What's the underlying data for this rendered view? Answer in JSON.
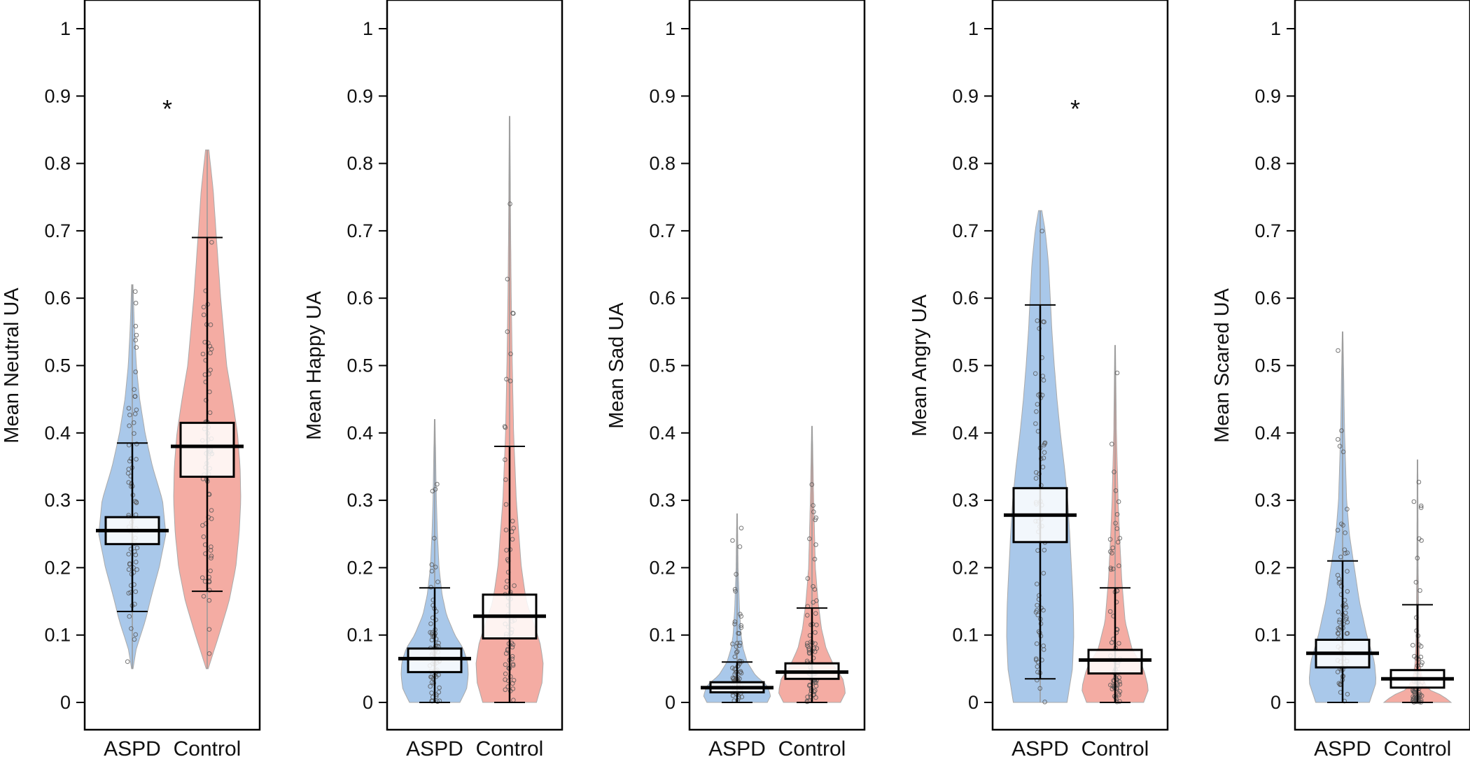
{
  "palette": {
    "ASPD": "#a9c8ea",
    "Control": "#f4aca3",
    "box_fill": "#ffffff",
    "points": "#555555"
  },
  "chart_data": [
    {
      "type": "violin-box",
      "ylabel": "Mean Neutral UA",
      "ylim": [
        0,
        1
      ],
      "yticks": [
        "0",
        "0.1",
        "0.2",
        "0.3",
        "0.4",
        "0.5",
        "0.6",
        "0.7",
        "0.8",
        "0.9",
        "1"
      ],
      "categories": [
        "ASPD",
        "Control"
      ],
      "significance": "*",
      "groups": [
        {
          "name": "ASPD",
          "min": 0.05,
          "max": 0.62,
          "whisker_low": 0.135,
          "whisker_high": 0.385,
          "q1": 0.235,
          "median": 0.255,
          "q3": 0.275,
          "density": [
            [
              0.05,
              0.02
            ],
            [
              0.08,
              0.12
            ],
            [
              0.12,
              0.38
            ],
            [
              0.16,
              0.58
            ],
            [
              0.2,
              0.8
            ],
            [
              0.25,
              1.0
            ],
            [
              0.3,
              0.9
            ],
            [
              0.35,
              0.6
            ],
            [
              0.4,
              0.38
            ],
            [
              0.45,
              0.22
            ],
            [
              0.5,
              0.12
            ],
            [
              0.56,
              0.06
            ],
            [
              0.62,
              0.02
            ]
          ]
        },
        {
          "name": "Control",
          "min": 0.05,
          "max": 0.82,
          "whisker_low": 0.165,
          "whisker_high": 0.69,
          "q1": 0.335,
          "median": 0.38,
          "q3": 0.415,
          "density": [
            [
              0.05,
              0.03
            ],
            [
              0.1,
              0.35
            ],
            [
              0.15,
              0.65
            ],
            [
              0.2,
              0.85
            ],
            [
              0.25,
              0.95
            ],
            [
              0.3,
              1.0
            ],
            [
              0.35,
              0.98
            ],
            [
              0.4,
              0.9
            ],
            [
              0.45,
              0.75
            ],
            [
              0.5,
              0.58
            ],
            [
              0.6,
              0.4
            ],
            [
              0.7,
              0.26
            ],
            [
              0.76,
              0.18
            ],
            [
              0.82,
              0.05
            ]
          ]
        }
      ]
    },
    {
      "type": "violin-box",
      "ylabel": "Mean Happy UA",
      "ylim": [
        0,
        1
      ],
      "yticks": [
        "0",
        "0.1",
        "0.2",
        "0.3",
        "0.4",
        "0.5",
        "0.6",
        "0.7",
        "0.8",
        "0.9",
        "1"
      ],
      "categories": [
        "ASPD",
        "Control"
      ],
      "significance": "",
      "groups": [
        {
          "name": "ASPD",
          "min": 0.0,
          "max": 0.42,
          "whisker_low": 0.0,
          "whisker_high": 0.17,
          "q1": 0.045,
          "median": 0.065,
          "q3": 0.08,
          "density": [
            [
              0.0,
              0.75
            ],
            [
              0.02,
              0.95
            ],
            [
              0.04,
              1.0
            ],
            [
              0.06,
              0.98
            ],
            [
              0.08,
              0.85
            ],
            [
              0.1,
              0.6
            ],
            [
              0.13,
              0.35
            ],
            [
              0.16,
              0.22
            ],
            [
              0.2,
              0.13
            ],
            [
              0.25,
              0.08
            ],
            [
              0.3,
              0.05
            ],
            [
              0.36,
              0.03
            ],
            [
              0.42,
              0.01
            ]
          ]
        },
        {
          "name": "Control",
          "min": 0.0,
          "max": 0.87,
          "whisker_low": 0.0,
          "whisker_high": 0.38,
          "q1": 0.095,
          "median": 0.128,
          "q3": 0.16,
          "density": [
            [
              0.0,
              0.8
            ],
            [
              0.03,
              0.97
            ],
            [
              0.06,
              1.0
            ],
            [
              0.09,
              0.9
            ],
            [
              0.12,
              0.7
            ],
            [
              0.15,
              0.5
            ],
            [
              0.2,
              0.35
            ],
            [
              0.3,
              0.2
            ],
            [
              0.4,
              0.12
            ],
            [
              0.5,
              0.08
            ],
            [
              0.6,
              0.05
            ],
            [
              0.7,
              0.03
            ],
            [
              0.87,
              0.01
            ]
          ]
        }
      ]
    },
    {
      "type": "violin-box",
      "ylabel": "Mean Sad UA",
      "ylim": [
        0,
        1
      ],
      "yticks": [
        "0",
        "0.1",
        "0.2",
        "0.3",
        "0.4",
        "0.5",
        "0.6",
        "0.7",
        "0.8",
        "0.9",
        "1"
      ],
      "categories": [
        "ASPD",
        "Control"
      ],
      "significance": "",
      "groups": [
        {
          "name": "ASPD",
          "min": 0.0,
          "max": 0.28,
          "whisker_low": 0.0,
          "whisker_high": 0.06,
          "q1": 0.015,
          "median": 0.022,
          "q3": 0.03,
          "density": [
            [
              0.0,
              0.9
            ],
            [
              0.01,
              1.0
            ],
            [
              0.025,
              0.9
            ],
            [
              0.04,
              0.55
            ],
            [
              0.06,
              0.3
            ],
            [
              0.08,
              0.18
            ],
            [
              0.1,
              0.12
            ],
            [
              0.14,
              0.07
            ],
            [
              0.2,
              0.03
            ],
            [
              0.28,
              0.01
            ]
          ]
        },
        {
          "name": "Control",
          "min": 0.0,
          "max": 0.41,
          "whisker_low": 0.0,
          "whisker_high": 0.14,
          "q1": 0.035,
          "median": 0.045,
          "q3": 0.058,
          "density": [
            [
              0.0,
              0.85
            ],
            [
              0.015,
              1.0
            ],
            [
              0.035,
              0.92
            ],
            [
              0.055,
              0.65
            ],
            [
              0.08,
              0.42
            ],
            [
              0.11,
              0.28
            ],
            [
              0.15,
              0.18
            ],
            [
              0.2,
              0.1
            ],
            [
              0.3,
              0.05
            ],
            [
              0.41,
              0.01
            ]
          ]
        }
      ]
    },
    {
      "type": "violin-box",
      "ylabel": "Mean Angry UA",
      "ylim": [
        0,
        1
      ],
      "yticks": [
        "0",
        "0.1",
        "0.2",
        "0.3",
        "0.4",
        "0.5",
        "0.6",
        "0.7",
        "0.8",
        "0.9",
        "1"
      ],
      "categories": [
        "ASPD",
        "Control"
      ],
      "significance": "*",
      "groups": [
        {
          "name": "ASPD",
          "min": 0.0,
          "max": 0.73,
          "whisker_low": 0.035,
          "whisker_high": 0.59,
          "q1": 0.238,
          "median": 0.278,
          "q3": 0.318,
          "density": [
            [
              0.0,
              0.8
            ],
            [
              0.05,
              0.96
            ],
            [
              0.1,
              1.0
            ],
            [
              0.15,
              0.98
            ],
            [
              0.2,
              0.93
            ],
            [
              0.25,
              0.88
            ],
            [
              0.3,
              0.82
            ],
            [
              0.35,
              0.72
            ],
            [
              0.4,
              0.6
            ],
            [
              0.45,
              0.5
            ],
            [
              0.5,
              0.42
            ],
            [
              0.55,
              0.35
            ],
            [
              0.6,
              0.3
            ],
            [
              0.65,
              0.25
            ],
            [
              0.7,
              0.15
            ],
            [
              0.73,
              0.05
            ]
          ]
        },
        {
          "name": "Control",
          "min": 0.0,
          "max": 0.53,
          "whisker_low": 0.0,
          "whisker_high": 0.17,
          "q1": 0.043,
          "median": 0.063,
          "q3": 0.078,
          "density": [
            [
              0.0,
              0.85
            ],
            [
              0.02,
              1.0
            ],
            [
              0.05,
              0.85
            ],
            [
              0.08,
              0.5
            ],
            [
              0.12,
              0.3
            ],
            [
              0.18,
              0.2
            ],
            [
              0.25,
              0.13
            ],
            [
              0.3,
              0.09
            ],
            [
              0.4,
              0.04
            ],
            [
              0.53,
              0.01
            ]
          ]
        }
      ]
    },
    {
      "type": "violin-box",
      "ylabel": "Mean Scared UA",
      "ylim": [
        0,
        1
      ],
      "yticks": [
        "0",
        "0.1",
        "0.2",
        "0.3",
        "0.4",
        "0.5",
        "0.6",
        "0.7",
        "0.8",
        "0.9",
        "1"
      ],
      "categories": [
        "ASPD",
        "Control"
      ],
      "significance": "",
      "groups": [
        {
          "name": "ASPD",
          "min": 0.0,
          "max": 0.55,
          "whisker_low": 0.0,
          "whisker_high": 0.21,
          "q1": 0.052,
          "median": 0.073,
          "q3": 0.093,
          "density": [
            [
              0.0,
              0.8
            ],
            [
              0.03,
              1.0
            ],
            [
              0.06,
              0.95
            ],
            [
              0.1,
              0.72
            ],
            [
              0.15,
              0.5
            ],
            [
              0.2,
              0.35
            ],
            [
              0.25,
              0.2
            ],
            [
              0.3,
              0.12
            ],
            [
              0.4,
              0.06
            ],
            [
              0.55,
              0.01
            ]
          ]
        },
        {
          "name": "Control",
          "min": 0.0,
          "max": 0.36,
          "whisker_low": 0.0,
          "whisker_high": 0.145,
          "q1": 0.022,
          "median": 0.035,
          "q3": 0.048,
          "density": [
            [
              0.0,
              1.0
            ],
            [
              0.01,
              0.75
            ],
            [
              0.02,
              0.3
            ],
            [
              0.04,
              0.12
            ],
            [
              0.06,
              0.07
            ],
            [
              0.1,
              0.04
            ],
            [
              0.2,
              0.02
            ],
            [
              0.36,
              0.01
            ]
          ]
        }
      ]
    }
  ]
}
